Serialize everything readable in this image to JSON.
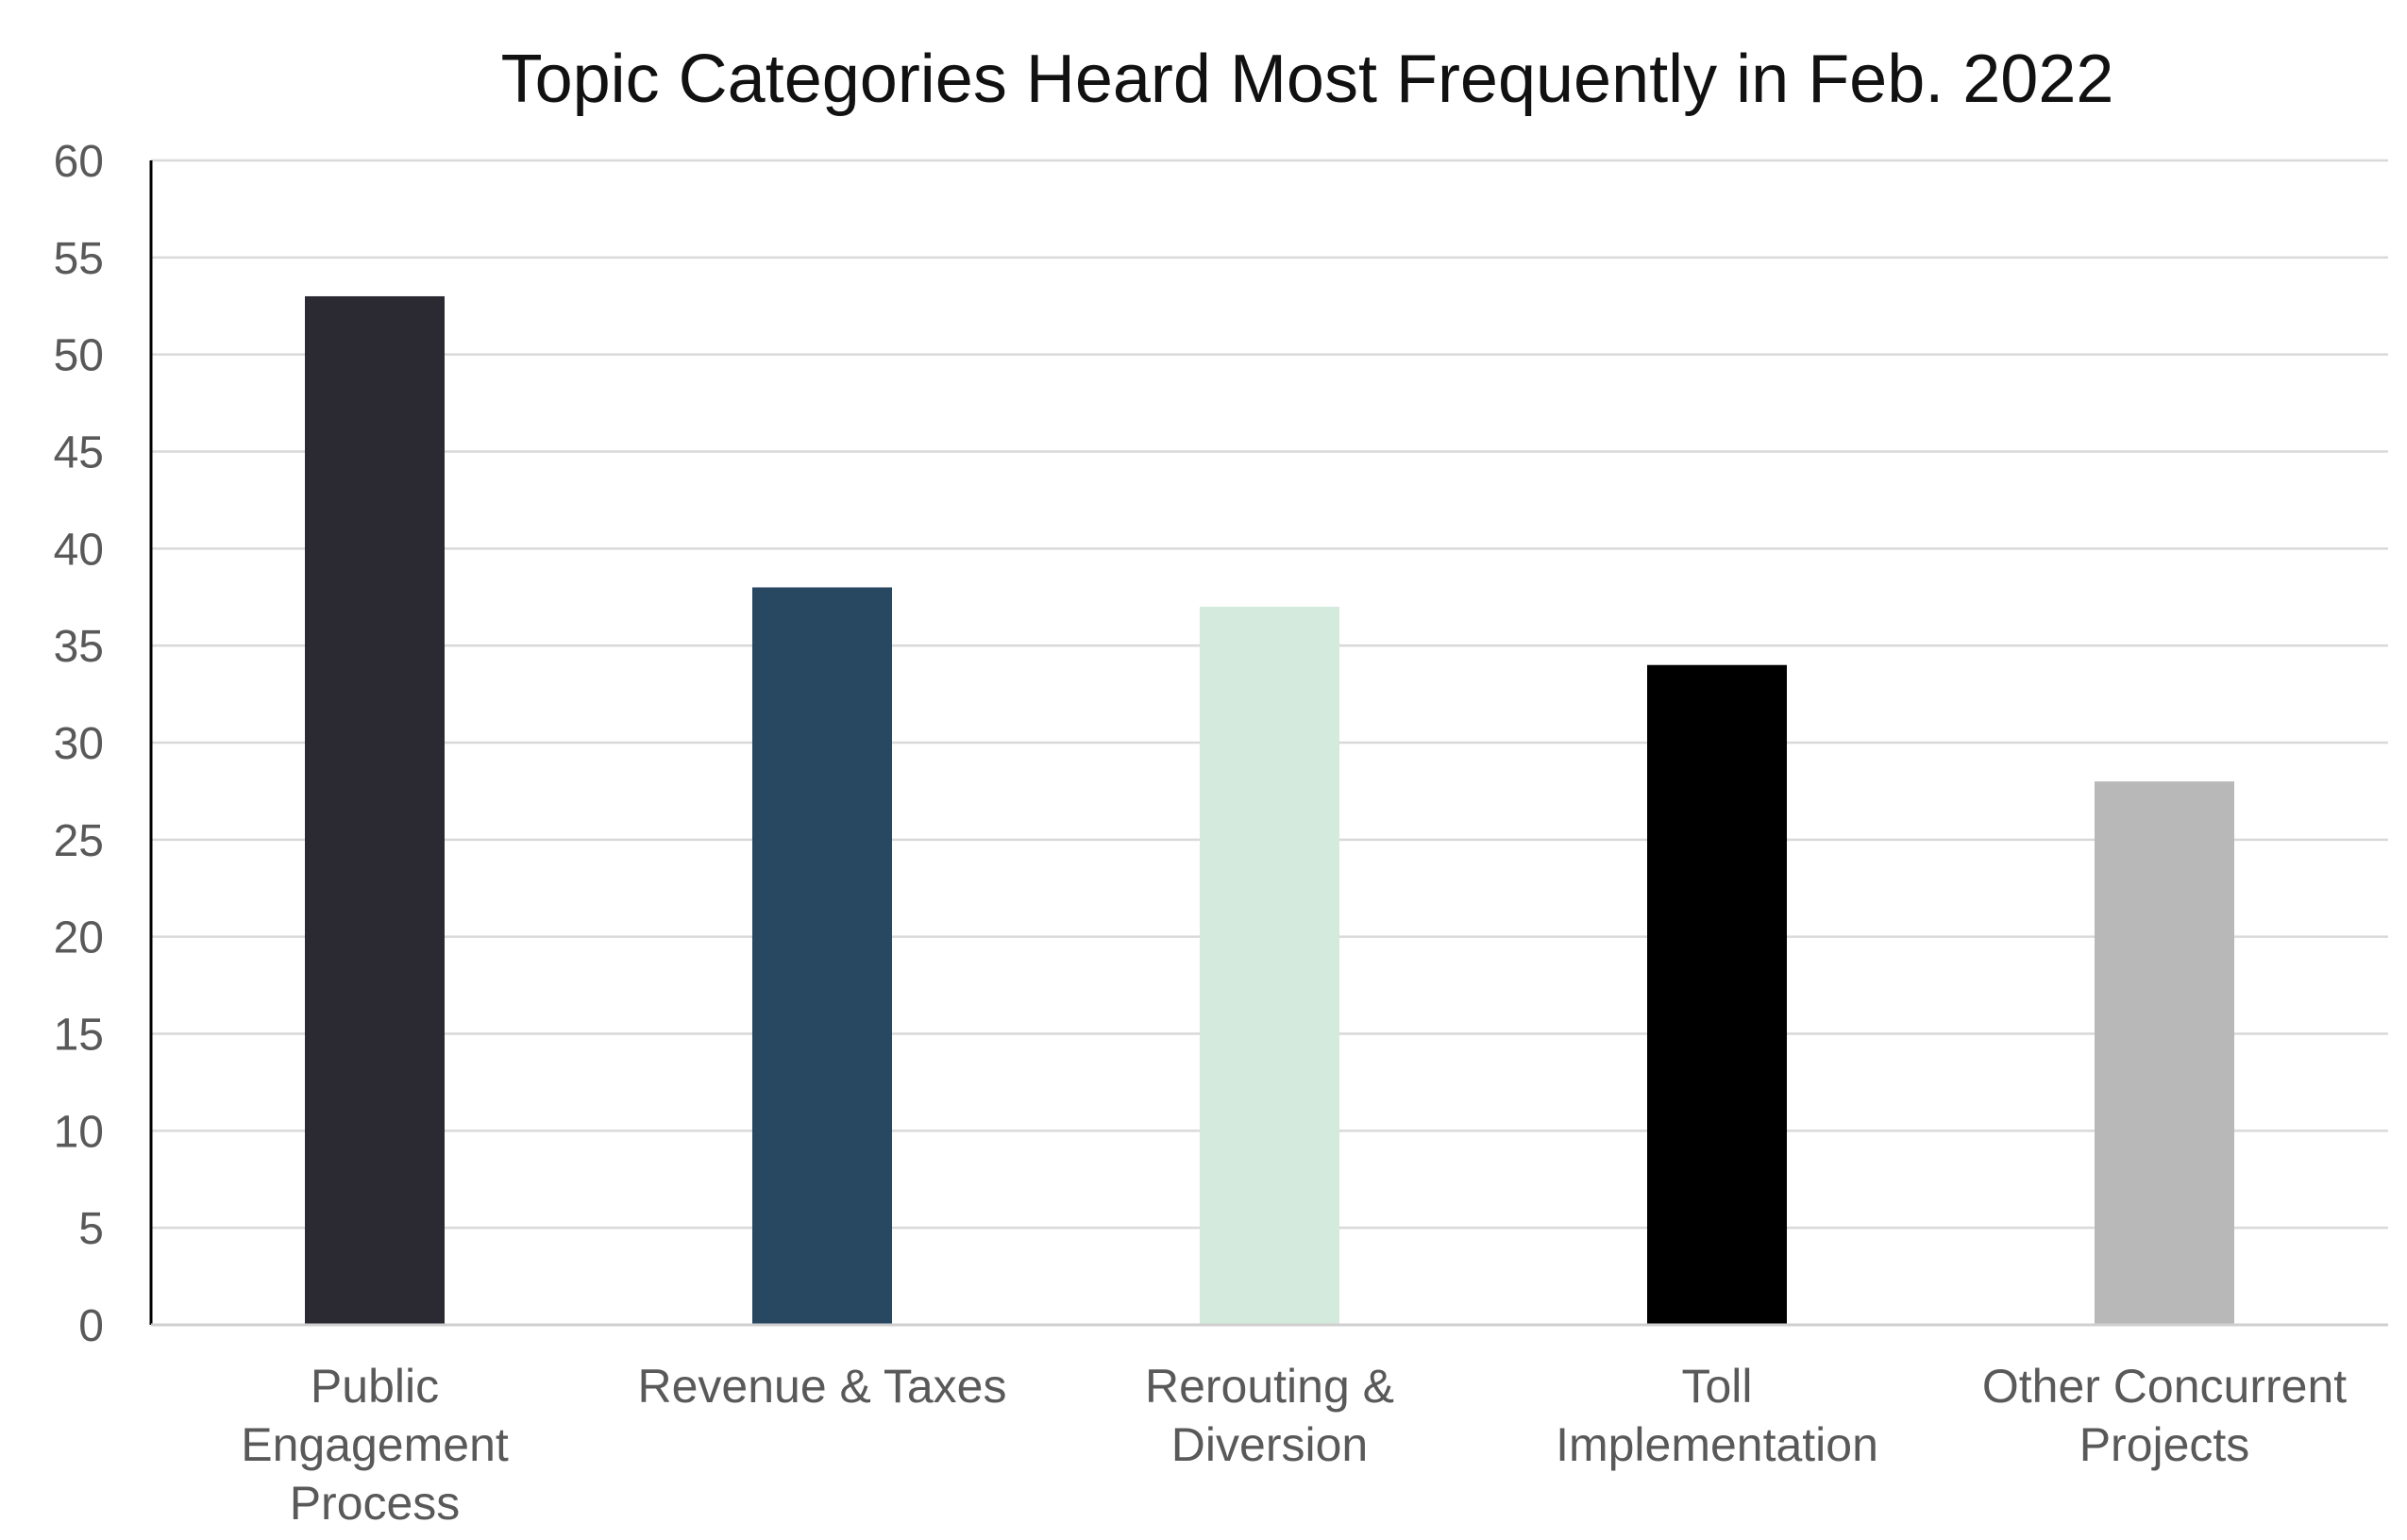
{
  "chart_data": {
    "type": "bar",
    "title": "Topic Categories Heard Most Frequently in Feb. 2022",
    "categories": [
      [
        "Public",
        "Engagement",
        "Process"
      ],
      [
        "Revenue & Taxes"
      ],
      [
        "Rerouting &",
        "Diversion"
      ],
      [
        "Toll",
        "Implementation"
      ],
      [
        "Other Concurrent",
        "Projects"
      ]
    ],
    "values": [
      53,
      38,
      37,
      34,
      28
    ],
    "colors": [
      "#2b2a33",
      "#284760",
      "#d3eadd",
      "#000000",
      "#b8b8b8"
    ],
    "ylim": [
      0,
      60
    ],
    "yticks": [
      "0",
      "5",
      "10",
      "15",
      "20",
      "25",
      "30",
      "35",
      "40",
      "45",
      "50",
      "55",
      "60"
    ],
    "grid": true,
    "legend": "none"
  }
}
